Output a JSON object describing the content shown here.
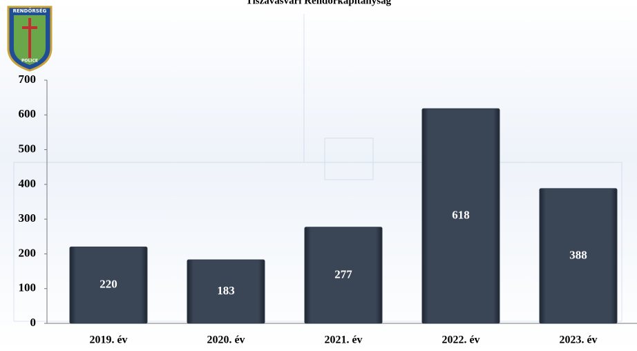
{
  "chart_data": {
    "type": "bar",
    "title": "Tiszavasvári Rendőrkapitányság",
    "categories": [
      "2019. év",
      "2020. év",
      "2021. év",
      "2022. év",
      "2023. év"
    ],
    "values": [
      220,
      183,
      277,
      618,
      388
    ],
    "color": "#323c4b",
    "ylim": [
      0,
      700
    ],
    "yticks": [
      0,
      100,
      200,
      300,
      400,
      500,
      600,
      700
    ],
    "grid": false
  },
  "logo": {
    "top": "RENDŐRSÉG",
    "bottom": "POLICE"
  }
}
